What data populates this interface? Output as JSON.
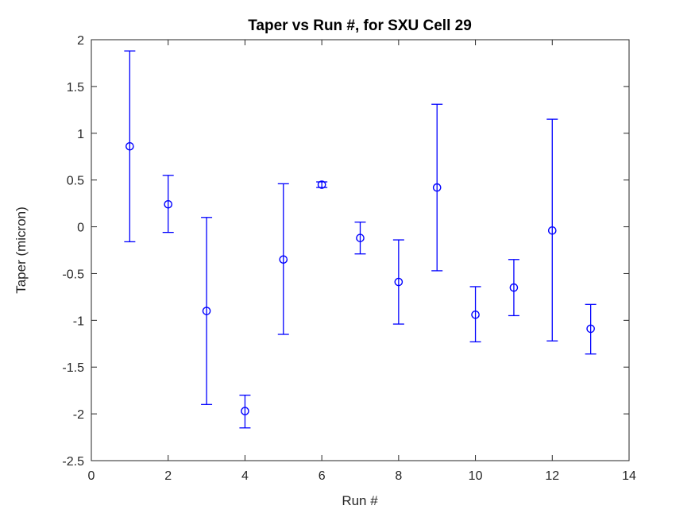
{
  "figure": {
    "background": "#ffffff"
  },
  "chart_data": {
    "type": "scatter",
    "subtype": "errorbar",
    "title": "Taper vs Run #, for SXU Cell 29",
    "xlabel": "Run #",
    "ylabel": "Taper (micron)",
    "xlim": [
      0,
      14
    ],
    "ylim": [
      -2.5,
      2
    ],
    "xticks": [
      0,
      2,
      4,
      6,
      8,
      10,
      12,
      14
    ],
    "xtick_labels": [
      "0",
      "2",
      "4",
      "6",
      "8",
      "10",
      "12",
      "14"
    ],
    "yticks": [
      2,
      1.5,
      1,
      0.5,
      0,
      -0.5,
      -1,
      -1.5,
      -2,
      -2.5
    ],
    "ytick_labels": [
      "2",
      "1.5",
      "1",
      "0.5",
      "0",
      "-0.5",
      "-1",
      "-1.5",
      "-2",
      "-2.5"
    ],
    "grid": false,
    "legend": null,
    "marker": "open-circle",
    "series_color": "#0000FF",
    "axis_color": "#262626",
    "series": [
      {
        "name": "Taper",
        "x": [
          1,
          2,
          3,
          4,
          5,
          6,
          7,
          8,
          9,
          10,
          11,
          12,
          13
        ],
        "y": [
          0.86,
          0.24,
          -0.9,
          -1.97,
          -0.35,
          0.45,
          -0.12,
          -0.59,
          0.42,
          -0.94,
          -0.65,
          -0.04,
          -1.09
        ],
        "y_upper": [
          1.88,
          0.55,
          0.1,
          -1.8,
          0.46,
          0.48,
          0.05,
          -0.14,
          1.31,
          -0.64,
          -0.35,
          1.15,
          -0.83
        ],
        "y_lower": [
          -0.16,
          -0.06,
          -1.9,
          -2.15,
          -1.15,
          0.42,
          -0.29,
          -1.04,
          -0.47,
          -1.23,
          -0.95,
          -1.22,
          -1.36
        ]
      }
    ]
  }
}
